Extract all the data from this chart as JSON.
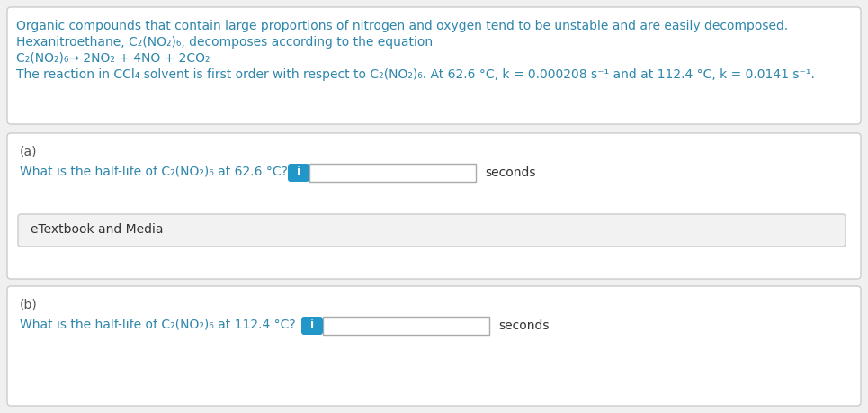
{
  "bg_color": "#f0f0f0",
  "box_bg": "#ffffff",
  "box_edge": "#cccccc",
  "text_blue": "#2e86ab",
  "text_dark": "#333333",
  "text_gray": "#555555",
  "btn_color": "#2196c8",
  "btn_text": "i",
  "etextbook_bg": "#f2f2f2",
  "etextbook_edge": "#cccccc",
  "input_bg": "#ffffff",
  "input_edge": "#aaaaaa",
  "header_lines": [
    "Organic compounds that contain large proportions of nitrogen and oxygen tend to be unstable and are easily decomposed.",
    "Hexanitroethane, C₂(NO₂)₆, decomposes according to the equation",
    "C₂(NO₂)₆→ 2NO₂ + 4NO + 2CO₂",
    "The reaction in CCl₄ solvent is first order with respect to C₂(NO₂)₆. At 62.6 °C, k = 0.000208 s⁻¹ and at 112.4 °C, k = 0.0141 s⁻¹."
  ],
  "part_a_label": "(a)",
  "part_a_question": "What is the half-life of C₂(NO₂)₆ at 62.6 °C?",
  "part_a_unit": "seconds",
  "etextbook_text": "eTextbook and Media",
  "part_b_label": "(b)",
  "part_b_question": "What is the half-life of C₂(NO₂)₆ at 112.4 °C?",
  "part_b_unit": "seconds",
  "fontsize": 10.0
}
